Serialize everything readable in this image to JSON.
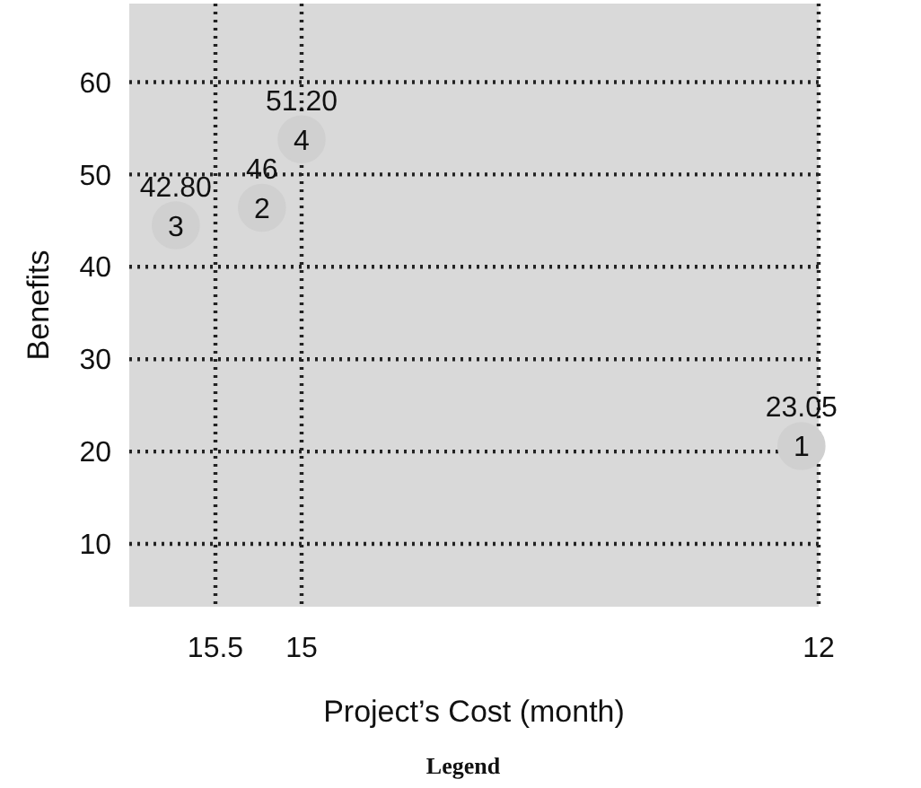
{
  "chart_data": {
    "type": "scatter",
    "xlabel": "Project’s Cost (month)",
    "ylabel": "Benefits",
    "xlim": [
      16,
      12
    ],
    "xticks": [
      15.5,
      15,
      12
    ],
    "ylim": [
      3.2,
      68.5
    ],
    "yticks": [
      10,
      20,
      30,
      40,
      50,
      60
    ],
    "grid": true,
    "marker": "circle",
    "series": [
      {
        "color": "#d0d0d0",
        "x": [
          12.1,
          15.23,
          15.73,
          15.0
        ],
        "values": [
          20.6,
          46.4,
          44.5,
          53.8
        ]
      }
    ],
    "annotations": [
      {
        "text": "1",
        "x": 12.1,
        "y": 20.6
      },
      {
        "text": "2",
        "x": 15.23,
        "y": 46.4
      },
      {
        "text": "3",
        "x": 15.73,
        "y": 44.5
      },
      {
        "text": "4",
        "x": 15.0,
        "y": 53.8
      },
      {
        "text": "23.05",
        "x": 12.1,
        "y": 20.6
      },
      {
        "text": "46",
        "x": 15.23,
        "y": 46.4
      },
      {
        "text": "42.80",
        "x": 15.73,
        "y": 44.5
      },
      {
        "text": "51.20",
        "x": 15.0,
        "y": 53.8
      },
      "Legend"
    ]
  }
}
